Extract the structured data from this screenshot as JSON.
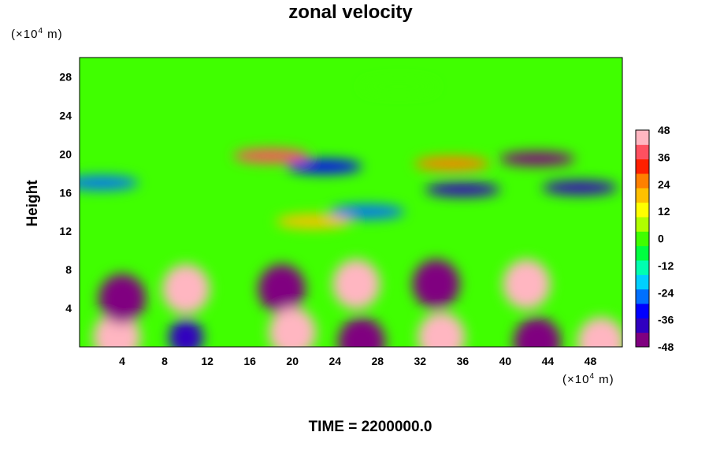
{
  "title": "zonal velocity",
  "time_label": "TIME = 2200000.0",
  "y_unit": {
    "pre": "(×10",
    "exp": "4",
    "post": " m)"
  },
  "x_unit": {
    "pre": "(×10",
    "exp": "4",
    "post": " m)"
  },
  "chart_data": {
    "type": "heatmap",
    "title": "zonal velocity",
    "xlabel": "",
    "ylabel": "Height",
    "xlim": [
      0,
      51
    ],
    "ylim": [
      0,
      30
    ],
    "x_ticks": [
      4,
      8,
      12,
      16,
      20,
      24,
      28,
      32,
      36,
      40,
      44,
      48
    ],
    "y_ticks": [
      4,
      8,
      12,
      16,
      20,
      24,
      28
    ],
    "colorbar": {
      "min": -48,
      "max": 48,
      "ticks": [
        48,
        36,
        24,
        12,
        0,
        -12,
        -24,
        -36,
        -48
      ],
      "colors": [
        "#800080",
        "#3000c0",
        "#0000ff",
        "#0070ff",
        "#00d0ff",
        "#00ffb0",
        "#00ff40",
        "#40ff00",
        "#b0ff00",
        "#ffff00",
        "#ffc000",
        "#ff8000",
        "#ff2000",
        "#ff5060",
        "#ffb6c1"
      ]
    },
    "features": [
      {
        "x": 3.5,
        "y": 1,
        "value": 48
      },
      {
        "x": 4,
        "y": 5,
        "value": -42
      },
      {
        "x": 10,
        "y": 6,
        "value": 44
      },
      {
        "x": 10,
        "y": 1,
        "value": -40
      },
      {
        "x": 19,
        "y": 6,
        "value": -48
      },
      {
        "x": 20,
        "y": 1.5,
        "value": 48
      },
      {
        "x": 26,
        "y": 6.5,
        "value": 48
      },
      {
        "x": 26.5,
        "y": 0.5,
        "value": -48
      },
      {
        "x": 33.5,
        "y": 6.5,
        "value": -46
      },
      {
        "x": 34,
        "y": 1,
        "value": 48
      },
      {
        "x": 42,
        "y": 6.5,
        "value": 48
      },
      {
        "x": 43,
        "y": 0.5,
        "value": -48
      },
      {
        "x": 49,
        "y": 0.5,
        "value": 46
      },
      {
        "x": 43,
        "y": 19.5,
        "value": -48
      },
      {
        "x": 18,
        "y": 19.8,
        "value": 36
      },
      {
        "x": 47,
        "y": 16.5,
        "value": -40
      },
      {
        "x": 36,
        "y": 16.3,
        "value": -38
      },
      {
        "x": 23,
        "y": 18.7,
        "value": -30
      },
      {
        "x": 35,
        "y": 19,
        "value": 25
      },
      {
        "x": 2,
        "y": 17,
        "value": -28
      },
      {
        "x": 22,
        "y": 13,
        "value": 20
      },
      {
        "x": 27,
        "y": 14,
        "value": -24
      },
      {
        "x": 30,
        "y": 27,
        "value": 0
      }
    ]
  }
}
